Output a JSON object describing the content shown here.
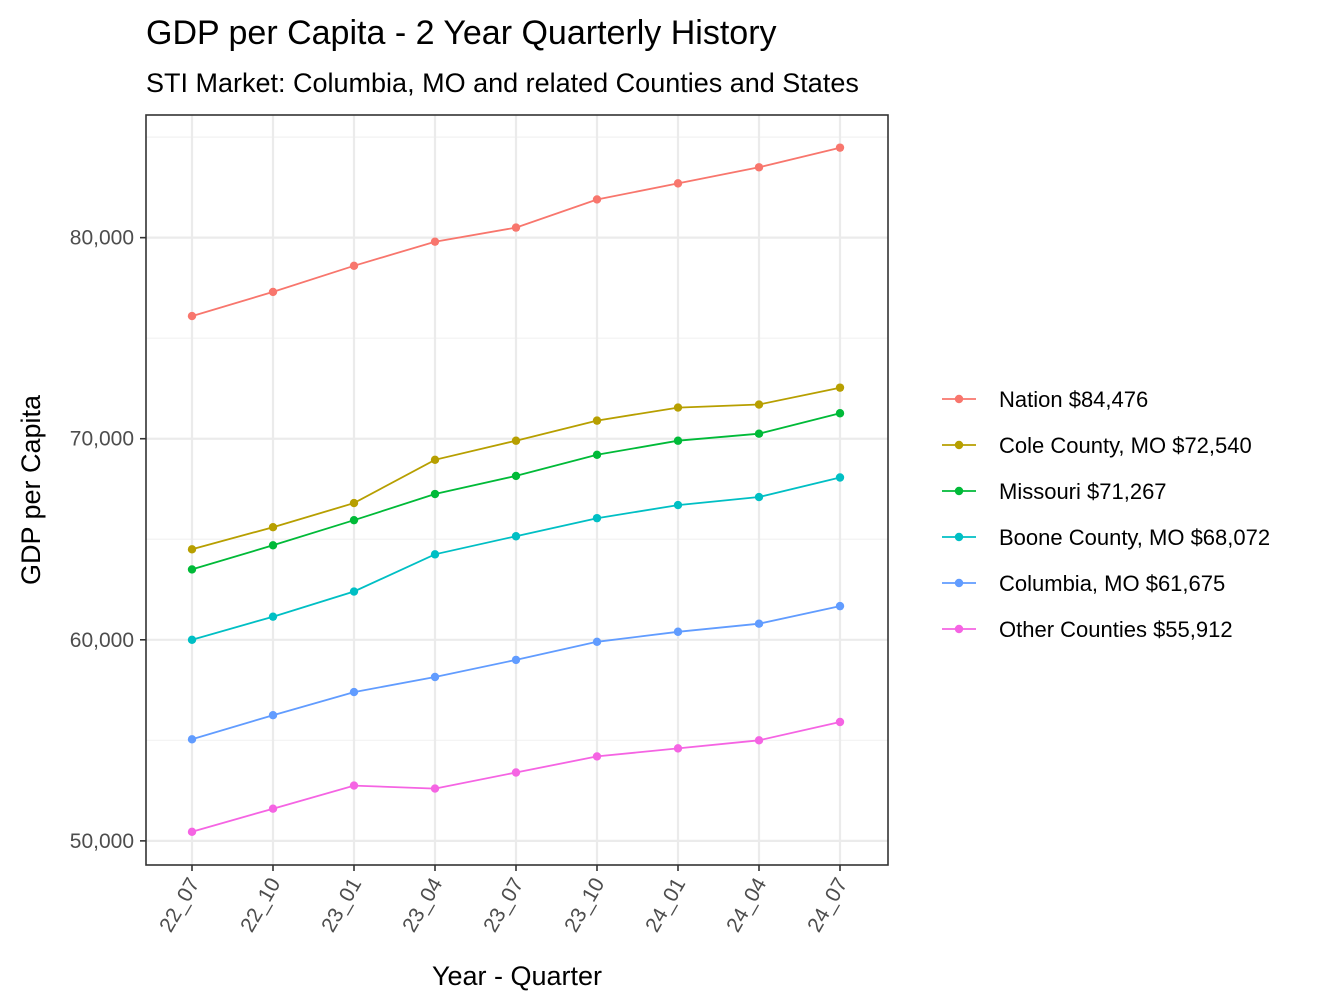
{
  "chart_data": {
    "type": "line",
    "title": "GDP per Capita - 2 Year Quarterly History",
    "subtitle": "STI Market: Columbia, MO and related Counties and States",
    "xlabel": "Year - Quarter",
    "ylabel": "GDP per Capita",
    "ylim": [
      48800,
      86100
    ],
    "yticks": [
      50000,
      60000,
      70000,
      80000
    ],
    "ytick_labels": [
      "50,000",
      "60,000",
      "70,000",
      "80,000"
    ],
    "categories": [
      "22_07",
      "22_10",
      "23_01",
      "23_04",
      "23_07",
      "23_10",
      "24_01",
      "24_04",
      "24_07"
    ],
    "grid": true,
    "legend_position": "right",
    "series": [
      {
        "name": "Nation $84,476",
        "color": "#F8766D",
        "values": [
          76100,
          77300,
          78600,
          79800,
          80500,
          81900,
          82700,
          83500,
          84476
        ]
      },
      {
        "name": "Cole County, MO $72,540",
        "color": "#B79F00",
        "values": [
          64500,
          65600,
          66800,
          68950,
          69900,
          70900,
          71550,
          71700,
          72540
        ]
      },
      {
        "name": "Missouri $71,267",
        "color": "#00BA38",
        "values": [
          63500,
          64700,
          65950,
          67250,
          68150,
          69200,
          69900,
          70250,
          71267
        ]
      },
      {
        "name": "Boone County, MO $68,072",
        "color": "#00BFC4",
        "values": [
          60000,
          61150,
          62400,
          64250,
          65150,
          66050,
          66700,
          67100,
          68072
        ]
      },
      {
        "name": "Columbia, MO $61,675",
        "color": "#619CFF",
        "values": [
          55050,
          56250,
          57400,
          58150,
          59000,
          59900,
          60400,
          60800,
          61675
        ]
      },
      {
        "name": "Other Counties $55,912",
        "color": "#F564E3",
        "values": [
          50450,
          51600,
          52750,
          52600,
          53400,
          54200,
          54600,
          55000,
          55912
        ]
      }
    ]
  }
}
